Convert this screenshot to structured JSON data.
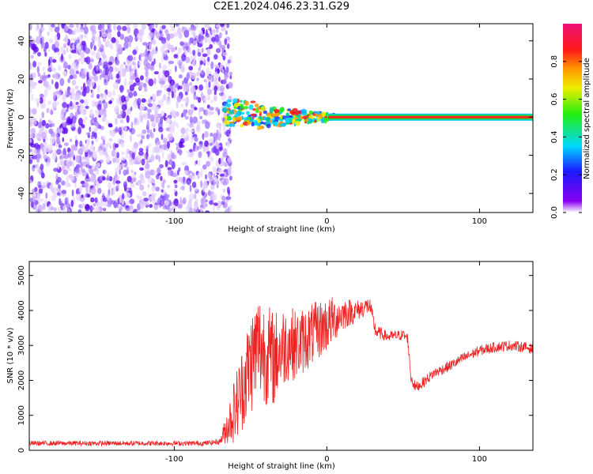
{
  "title": "C2E1.2024.046.23.31.G29",
  "colors": {
    "snr_line": "#ee2222",
    "frame": "#000000",
    "noise": "#7a00e6"
  },
  "chart_data": [
    {
      "type": "heatmap",
      "xlabel": "Height of straight line (km)",
      "ylabel": "Frequency (Hz)",
      "xlim": [
        -195,
        135
      ],
      "ylim": [
        -50,
        49
      ],
      "xticks": [
        -100,
        0,
        100
      ],
      "yticks": [
        -40,
        -20,
        0,
        20,
        40
      ],
      "xtick_labels": [
        "-100",
        "0",
        "100"
      ],
      "ytick_labels": [
        "-40",
        "-20",
        "0",
        "20",
        "40"
      ],
      "colorbar": {
        "label": "Normalized spectral amplitude",
        "range": [
          0.0,
          1.0
        ],
        "ticks": [
          0.0,
          0.2,
          0.4,
          0.6,
          0.8
        ],
        "tick_labels": [
          "0.0",
          "0.2",
          "0.4",
          "0.6",
          "0.8"
        ],
        "colormap": "rainbow (white-purple-blue-cyan-green-yellow-orange-red-magenta)"
      },
      "regions": [
        {
          "x_range": [
            -195,
            -67
          ],
          "description": "broadband noise across all frequencies",
          "amplitude": 0.15
        },
        {
          "x_range": [
            -67,
            5
          ],
          "description": "scattered signal near 0 Hz, spread about ±5 Hz",
          "amplitude": 0.6
        },
        {
          "x_range": [
            5,
            135
          ],
          "description": "steady narrow line at 0 Hz",
          "amplitude": 0.9
        }
      ]
    },
    {
      "type": "line",
      "xlabel": "Height of straight line (km)",
      "ylabel": "SNR (10 * v/v)",
      "xlim": [
        -195,
        135
      ],
      "ylim": [
        0,
        5400
      ],
      "xticks": [
        -100,
        0,
        100
      ],
      "yticks": [
        0,
        1000,
        2000,
        3000,
        4000,
        5000
      ],
      "xtick_labels": [
        "-100",
        "0",
        "100"
      ],
      "ytick_labels": [
        "0",
        "1000",
        "2000",
        "3000",
        "4000",
        "5000"
      ],
      "series": [
        {
          "x": [
            -195,
            -170,
            -140,
            -110,
            -80,
            -70,
            -60,
            -50,
            -45,
            -40,
            -35,
            -30,
            -25,
            -20,
            -10,
            0,
            10,
            20,
            28,
            32,
            40,
            50,
            53,
            55,
            58,
            62,
            70,
            80,
            90,
            100,
            110,
            120,
            130,
            135
          ],
          "y": [
            200,
            200,
            200,
            200,
            200,
            250,
            1200,
            2500,
            3000,
            2800,
            2600,
            2900,
            3100,
            3000,
            3300,
            3600,
            3900,
            4000,
            4150,
            3400,
            3250,
            3300,
            3200,
            2100,
            1800,
            1900,
            2200,
            2400,
            2650,
            2850,
            2950,
            3000,
            2950,
            2900
          ],
          "noise_amp": [
            70,
            70,
            70,
            70,
            70,
            80,
            1000,
            1500,
            1600,
            1500,
            1400,
            1200,
            1100,
            1000,
            900,
            800,
            500,
            300,
            250,
            200,
            150,
            150,
            150,
            200,
            150,
            150,
            150,
            150,
            150,
            150,
            150,
            150,
            150,
            150
          ]
        }
      ]
    }
  ]
}
